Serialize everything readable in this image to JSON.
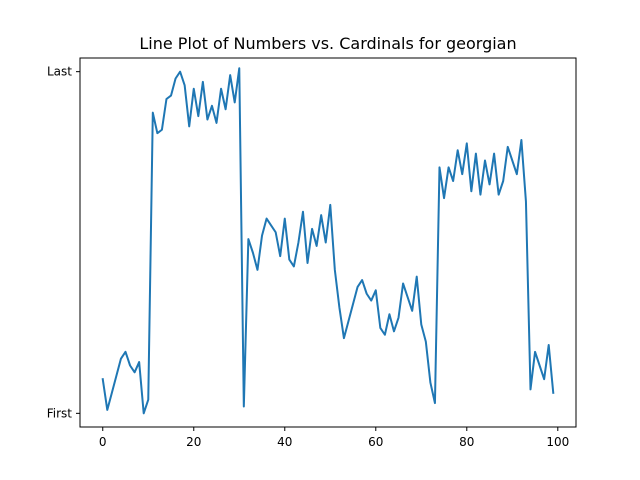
{
  "chart_data": {
    "type": "line",
    "title": "Line Plot of Numbers vs. Cardinals for georgian",
    "xlabel": "",
    "ylabel": "",
    "xlim": [
      -5,
      104
    ],
    "ylim": [
      -0.04,
      1.04
    ],
    "grid": false,
    "x_ticks": [
      0,
      20,
      40,
      60,
      80,
      100
    ],
    "y_ticks": [
      {
        "value": 0,
        "label": "First"
      },
      {
        "value": 1,
        "label": "Last"
      }
    ],
    "line_color": "#1f77b4",
    "x": [
      0,
      1,
      2,
      3,
      4,
      5,
      6,
      7,
      8,
      9,
      10,
      11,
      12,
      13,
      14,
      15,
      16,
      17,
      18,
      19,
      20,
      21,
      22,
      23,
      24,
      25,
      26,
      27,
      28,
      29,
      30,
      31,
      32,
      33,
      34,
      35,
      36,
      37,
      38,
      39,
      40,
      41,
      42,
      43,
      44,
      45,
      46,
      47,
      48,
      49,
      50,
      51,
      52,
      53,
      54,
      55,
      56,
      57,
      58,
      59,
      60,
      61,
      62,
      63,
      64,
      65,
      66,
      67,
      68,
      69,
      70,
      71,
      72,
      73,
      74,
      75,
      76,
      77,
      78,
      79,
      80,
      81,
      82,
      83,
      84,
      85,
      86,
      87,
      88,
      89,
      90,
      91,
      92,
      93,
      94,
      95,
      96,
      97,
      98,
      99
    ],
    "y": [
      0.1,
      0.01,
      0.06,
      0.11,
      0.16,
      0.18,
      0.14,
      0.12,
      0.15,
      0.0,
      0.04,
      0.88,
      0.82,
      0.83,
      0.92,
      0.93,
      0.98,
      1.0,
      0.96,
      0.84,
      0.95,
      0.87,
      0.97,
      0.86,
      0.9,
      0.85,
      0.95,
      0.89,
      0.99,
      0.91,
      1.01,
      0.02,
      0.51,
      0.47,
      0.42,
      0.52,
      0.57,
      0.55,
      0.53,
      0.46,
      0.57,
      0.45,
      0.43,
      0.5,
      0.59,
      0.44,
      0.54,
      0.49,
      0.58,
      0.5,
      0.61,
      0.42,
      0.31,
      0.22,
      0.27,
      0.32,
      0.37,
      0.39,
      0.35,
      0.33,
      0.36,
      0.25,
      0.23,
      0.29,
      0.24,
      0.28,
      0.38,
      0.34,
      0.3,
      0.4,
      0.26,
      0.21,
      0.09,
      0.03,
      0.72,
      0.63,
      0.72,
      0.68,
      0.77,
      0.7,
      0.79,
      0.65,
      0.76,
      0.64,
      0.74,
      0.67,
      0.76,
      0.64,
      0.68,
      0.78,
      0.74,
      0.7,
      0.8,
      0.62,
      0.07,
      0.18,
      0.14,
      0.1,
      0.2,
      0.06
    ]
  }
}
